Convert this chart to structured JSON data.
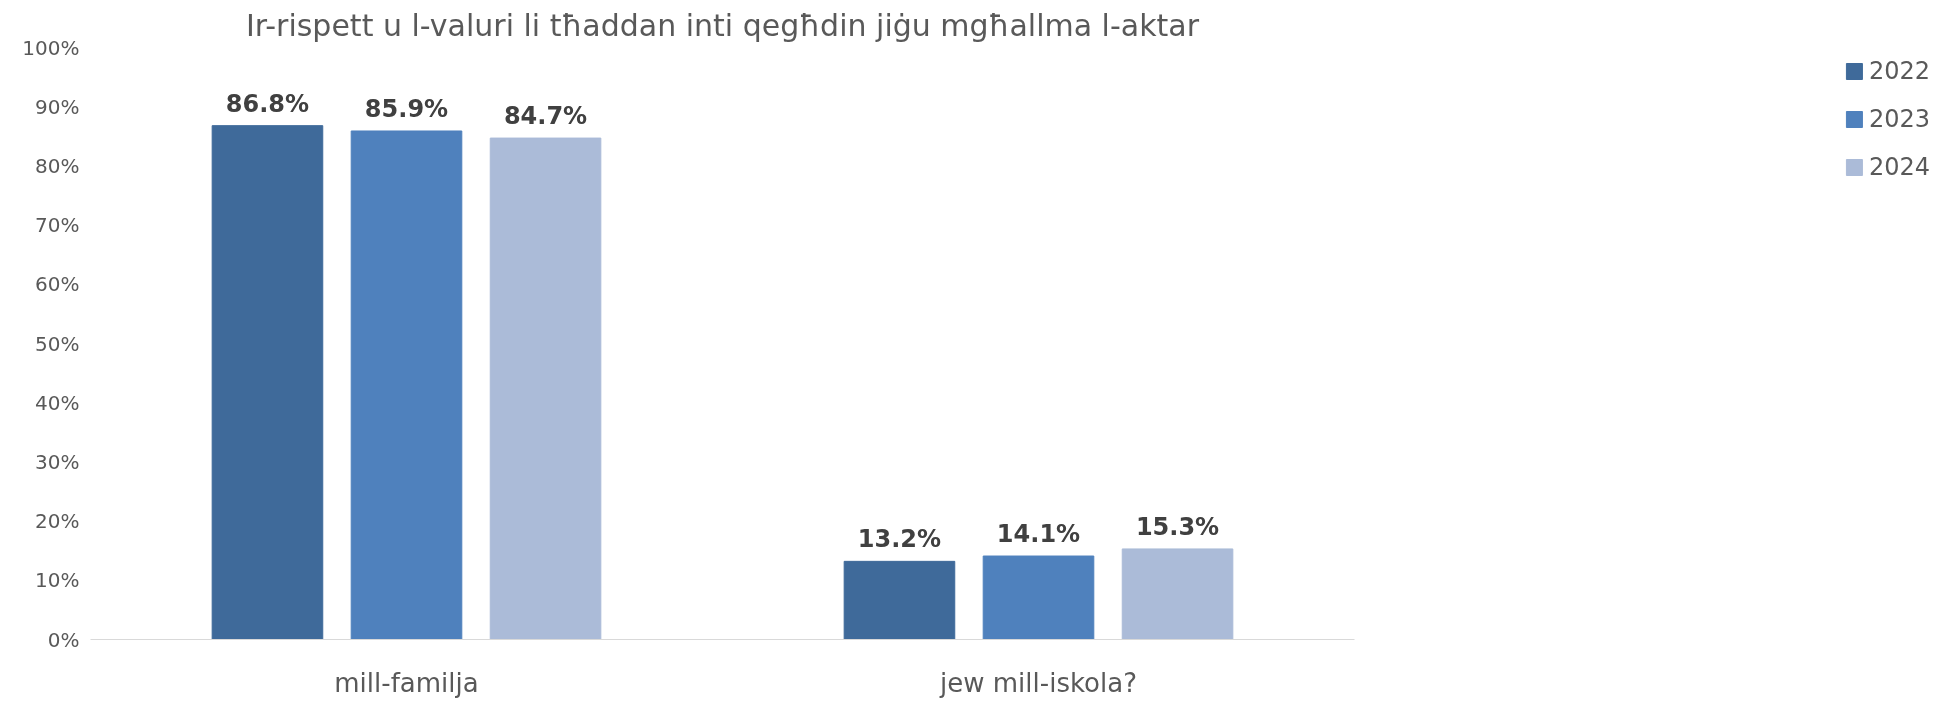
{
  "chart_data": {
    "type": "bar",
    "title": "Ir-rispett u l-valuri li tħaddan inti qegħdin jiġu mgħallma l-aktar",
    "categories": [
      "mill-familja",
      "jew mill-iskola?"
    ],
    "series": [
      {
        "name": "2022",
        "color": "#3f6a9a",
        "values": [
          86.8,
          13.2
        ]
      },
      {
        "name": "2023",
        "color": "#4f81bd",
        "values": [
          85.9,
          14.1
        ]
      },
      {
        "name": "2024",
        "color": "#abbbd8",
        "values": [
          84.7,
          15.3
        ]
      }
    ],
    "ylim": [
      0,
      100
    ],
    "yticks": [
      {
        "value": 0,
        "label": "0%"
      },
      {
        "value": 10,
        "label": "10%"
      },
      {
        "value": 20,
        "label": "20%"
      },
      {
        "value": 30,
        "label": "30%"
      },
      {
        "value": 40,
        "label": "40%"
      },
      {
        "value": 50,
        "label": "50%"
      },
      {
        "value": 60,
        "label": "60%"
      },
      {
        "value": 70,
        "label": "70%"
      },
      {
        "value": 80,
        "label": "80%"
      },
      {
        "value": 90,
        "label": "90%"
      },
      {
        "value": 100,
        "label": "100%"
      }
    ],
    "value_labels": [
      [
        "86.8%",
        "13.2%"
      ],
      [
        "85.9%",
        "14.1%"
      ],
      [
        "84.7%",
        "15.3%"
      ]
    ],
    "legend": "right",
    "grid": false
  }
}
